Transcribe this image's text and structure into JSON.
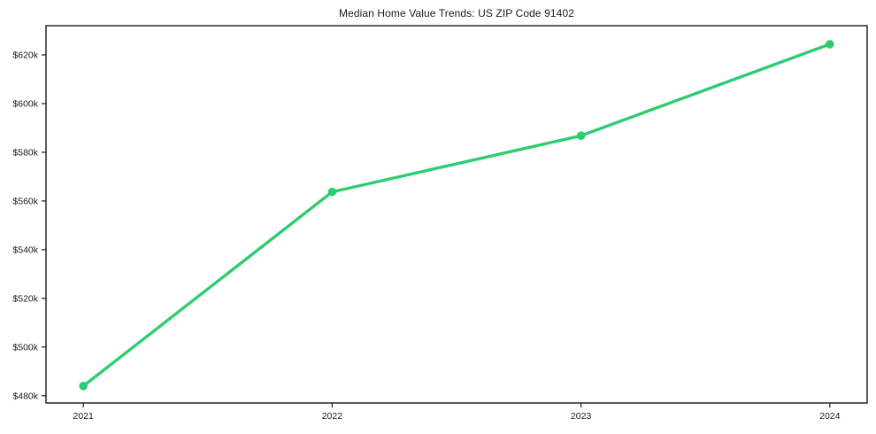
{
  "figure": {
    "background_color": "#ffffff"
  },
  "chart_data": {
    "type": "line",
    "title": "Median Home Value Trends: US ZIP Code 91402",
    "x": [
      2021,
      2022,
      2023,
      2024
    ],
    "xtick_labels": [
      "2021",
      "2022",
      "2023",
      "2024"
    ],
    "values": [
      484000,
      563700,
      586800,
      624400
    ],
    "ytick_values": [
      480000,
      500000,
      520000,
      540000,
      560000,
      580000,
      600000,
      620000
    ],
    "ytick_labels": [
      "$480k",
      "$500k",
      "$520k",
      "$540k",
      "$560k",
      "$580k",
      "$600k",
      "$620k"
    ],
    "xlim": [
      2020.85,
      2024.15
    ],
    "ylim": [
      477000,
      632000
    ],
    "xlabel": "",
    "ylabel": "",
    "grid": false,
    "legend_position": "none",
    "line_color": "#2ecc71",
    "marker": "circle",
    "marker_color": "#2ecc71",
    "axis_color": "#1a1a1a"
  }
}
